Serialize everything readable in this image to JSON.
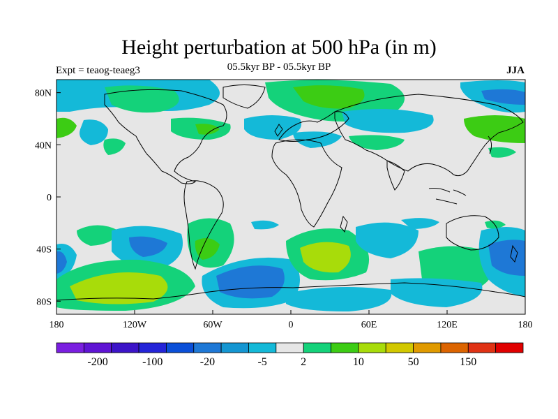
{
  "header": {
    "title": "Height perturbation at 500 hPa (in m)",
    "subtitle": "05.5kyr BP - 05.5kyr BP",
    "left_label": "Expt = teaog-teaeg3",
    "right_label": "JJA"
  },
  "map": {
    "projection": "cylindrical-equidistant",
    "lon_range": [
      -180,
      180
    ],
    "lat_range": [
      -90,
      90
    ],
    "lat_ticks": [
      {
        "value": 80,
        "label": "80N"
      },
      {
        "value": 40,
        "label": "40N"
      },
      {
        "value": 0,
        "label": "0"
      },
      {
        "value": -40,
        "label": "40S"
      },
      {
        "value": -80,
        "label": "80S"
      }
    ],
    "lon_ticks": [
      {
        "value": -180,
        "label": "180"
      },
      {
        "value": -120,
        "label": "120W"
      },
      {
        "value": -60,
        "label": "60W"
      },
      {
        "value": 0,
        "label": "0"
      },
      {
        "value": 60,
        "label": "60E"
      },
      {
        "value": 120,
        "label": "120E"
      },
      {
        "value": 180,
        "label": "180"
      }
    ],
    "background_color": "#e6e6e6"
  },
  "colorbar": {
    "colors": [
      "#7a1fe0",
      "#5f14d4",
      "#3c14c8",
      "#2424d8",
      "#0a4fd8",
      "#1e78d6",
      "#1496d2",
      "#14b9d8",
      "#e6e6e6",
      "#14d27a",
      "#3ccc14",
      "#a8dc0a",
      "#d2c800",
      "#e09a00",
      "#dc6400",
      "#e03214",
      "#e00000"
    ],
    "labels": [
      "-200",
      "-100",
      "-20",
      "-5",
      "2",
      "10",
      "50",
      "150"
    ]
  },
  "legend_key": {
    "strong_neg": "#1e78d6",
    "neg": "#14b9d8",
    "pos": "#14d27a",
    "pos2": "#3ccc14",
    "pos3": "#a8dc0a"
  }
}
